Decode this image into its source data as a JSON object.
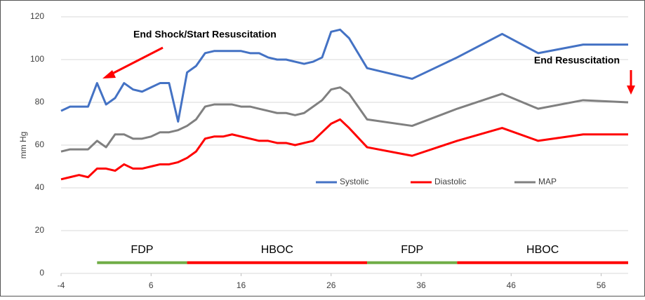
{
  "chart_data": {
    "type": "line",
    "y_label": "mm Hg",
    "x": [
      -4,
      -3,
      -2,
      -1,
      0,
      1,
      2,
      3,
      4,
      5,
      6,
      7,
      8,
      9,
      10,
      11,
      12,
      13,
      14,
      15,
      16,
      17,
      18,
      19,
      20,
      21,
      22,
      23,
      24,
      25,
      26,
      27,
      28,
      30,
      35,
      40,
      45,
      49,
      54,
      59
    ],
    "series": [
      {
        "name": "Systolic",
        "color": "#4472c4",
        "values": [
          76,
          78,
          78,
          78,
          89,
          79,
          82,
          89,
          86,
          85,
          87,
          89,
          89,
          71,
          94,
          97,
          103,
          104,
          104,
          104,
          104,
          103,
          103,
          101,
          100,
          100,
          99,
          98,
          99,
          101,
          113,
          114,
          110,
          96,
          91,
          101,
          112,
          103,
          107,
          107
        ]
      },
      {
        "name": "Diastolic",
        "color": "#ff0000",
        "values": [
          44,
          45,
          46,
          45,
          49,
          49,
          48,
          51,
          49,
          49,
          50,
          51,
          51,
          52,
          54,
          57,
          63,
          64,
          64,
          65,
          64,
          63,
          62,
          62,
          61,
          61,
          60,
          61,
          62,
          66,
          70,
          72,
          68,
          59,
          55,
          62,
          68,
          62,
          65,
          65
        ]
      },
      {
        "name": "MAP",
        "color": "#808080",
        "values": [
          57,
          58,
          58,
          58,
          62,
          59,
          65,
          65,
          63,
          63,
          64,
          66,
          66,
          67,
          69,
          72,
          78,
          79,
          79,
          79,
          78,
          78,
          77,
          76,
          75,
          75,
          74,
          75,
          78,
          81,
          86,
          87,
          84,
          72,
          69,
          77,
          84,
          77,
          81,
          80
        ]
      }
    ],
    "phases": [
      {
        "label": "FDP",
        "start": 0,
        "end": 10,
        "color": "#70ad47"
      },
      {
        "label": "HBOC",
        "start": 10,
        "end": 30,
        "color": "#ff0000"
      },
      {
        "label": "FDP",
        "start": 30,
        "end": 40,
        "color": "#70ad47"
      },
      {
        "label": "HBOC",
        "start": 40,
        "end": 59,
        "color": "#ff0000"
      }
    ],
    "phase_level": 5,
    "annotations": [
      "End Shock/Start Resuscitation",
      "End Resuscitation"
    ],
    "xlim": [
      -4,
      59
    ],
    "xticks": [
      -4,
      6,
      16,
      26,
      36,
      46,
      56
    ],
    "ylim": [
      0,
      120
    ],
    "yticks": [
      0,
      20,
      40,
      60,
      80,
      100,
      120
    ],
    "grid": true
  }
}
